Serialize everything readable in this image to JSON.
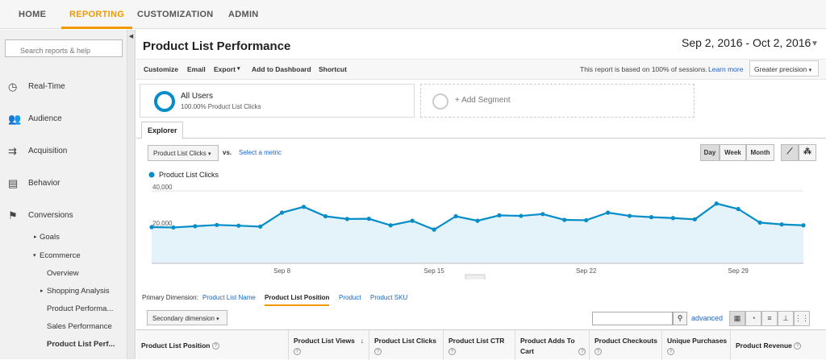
{
  "topnav": {
    "home": "HOME",
    "reporting": "REPORTING",
    "customization": "CUSTOMIZATION",
    "admin": "ADMIN"
  },
  "sidebar": {
    "search_placeholder": "Search reports & help",
    "items": [
      {
        "label": "Real-Time",
        "icon": "clock-icon"
      },
      {
        "label": "Audience",
        "icon": "people-icon"
      },
      {
        "label": "Acquisition",
        "icon": "arrows-icon"
      },
      {
        "label": "Behavior",
        "icon": "page-icon"
      },
      {
        "label": "Conversions",
        "icon": "flag-icon"
      }
    ],
    "sub": [
      "Goals",
      "Ecommerce",
      "Overview",
      "Shopping Analysis",
      "Product Performa...",
      "Sales Performance",
      "Product List Perf..."
    ]
  },
  "report": {
    "title": "Product List Performance",
    "date_range": "Sep 2, 2016 - Oct 2, 2016"
  },
  "toolbar": {
    "customize": "Customize",
    "email": "Email",
    "export": "Export",
    "add_dashboard": "Add to Dashboard",
    "shortcut": "Shortcut",
    "sessions_note": "This report is based on 100% of sessions.",
    "learn_more": "Learn more",
    "precision": "Greater precision"
  },
  "segments": {
    "all_users": "All Users",
    "all_users_sub": "100.00% Product List Clicks",
    "add": "+ Add Segment"
  },
  "explorer": {
    "tab": "Explorer",
    "metric": "Product List Clicks",
    "vs": "vs.",
    "select_metric": "Select a metric",
    "day": "Day",
    "week": "Week",
    "month": "Month"
  },
  "chart_data": {
    "type": "area",
    "legend": "Product List Clicks",
    "color": "#058dc7",
    "x": [
      "Sep 2",
      "Sep 3",
      "Sep 4",
      "Sep 5",
      "Sep 6",
      "Sep 7",
      "Sep 8",
      "Sep 9",
      "Sep 10",
      "Sep 11",
      "Sep 12",
      "Sep 13",
      "Sep 14",
      "Sep 15",
      "Sep 16",
      "Sep 17",
      "Sep 18",
      "Sep 19",
      "Sep 20",
      "Sep 21",
      "Sep 22",
      "Sep 23",
      "Sep 24",
      "Sep 25",
      "Sep 26",
      "Sep 27",
      "Sep 28",
      "Sep 29",
      "Sep 30",
      "Oct 1",
      "Oct 2"
    ],
    "values": [
      20000,
      19800,
      20500,
      21200,
      20800,
      20300,
      28000,
      31200,
      26000,
      24500,
      24600,
      21000,
      23500,
      18600,
      26000,
      23500,
      26500,
      26200,
      27200,
      24000,
      23800,
      28000,
      26200,
      25500,
      25000,
      24300,
      33000,
      30000,
      22500,
      21500,
      21000
    ],
    "y_ticks": [
      "40,000",
      "20,000"
    ],
    "ylim": [
      0,
      40000
    ],
    "x_ticks": [
      "Sep 8",
      "Sep 15",
      "Sep 22",
      "Sep 29"
    ]
  },
  "dimensions": {
    "label": "Primary Dimension:",
    "items": [
      "Product List Name",
      "Product List Position",
      "Product",
      "Product SKU"
    ]
  },
  "table": {
    "secondary": "Secondary dimension",
    "advanced": "advanced",
    "headers": [
      "Product List Position",
      "Product List Views",
      "Product List Clicks",
      "Product List CTR",
      "Product Adds To Cart",
      "Product Checkouts",
      "Unique Purchases",
      "Product Revenue"
    ]
  }
}
